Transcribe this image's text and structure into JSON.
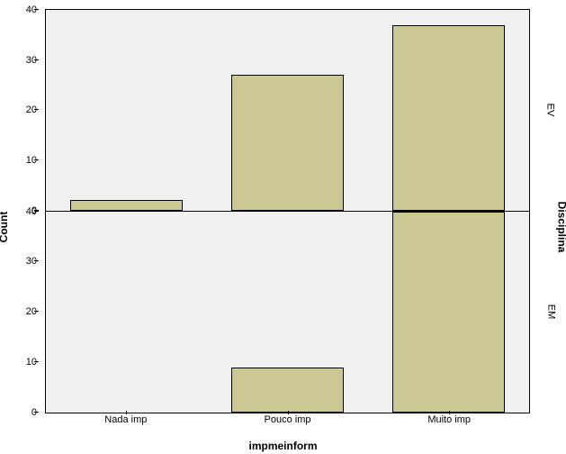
{
  "chart": {
    "type": "bar",
    "ylabel": "Count",
    "xlabel": "impmeinform",
    "right_label": "Disciplina",
    "label_fontsize": 12,
    "tick_fontsize": 11,
    "background_color": "#f0f0f0",
    "bar_color": "#cbc894",
    "bar_border_color": "#000000",
    "grid_color": "#ffffff",
    "bar_width": 0.7,
    "categories": [
      "Nada imp",
      "Pouco imp",
      "Muito imp"
    ],
    "ylim": [
      0,
      40
    ],
    "yticks": [
      0,
      10,
      20,
      30,
      40
    ],
    "panels": [
      {
        "label": "EV",
        "values": [
          2,
          27,
          37
        ]
      },
      {
        "label": "EM",
        "values": [
          0,
          9,
          40
        ]
      }
    ]
  }
}
